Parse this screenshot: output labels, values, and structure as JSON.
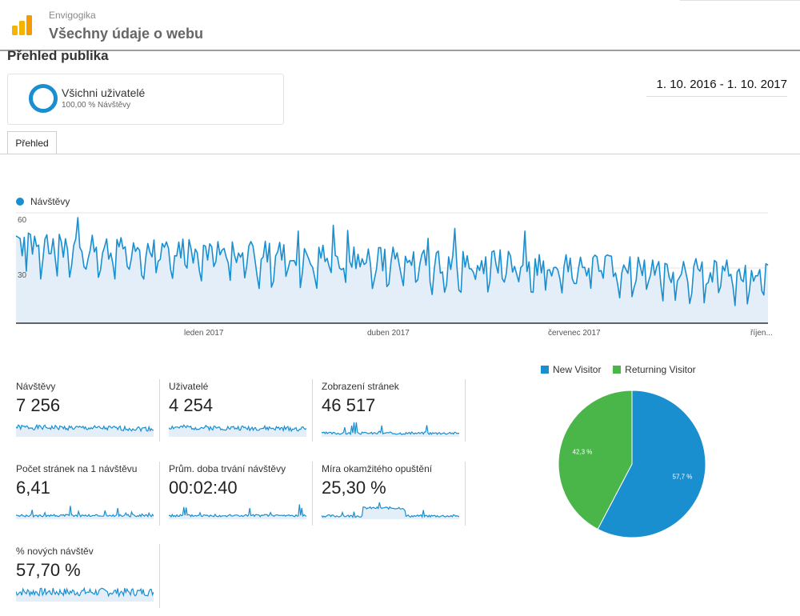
{
  "header": {
    "account": "Envigogika",
    "view": "Všechny údaje o webu"
  },
  "page_title": "Přehled publika",
  "segment": {
    "name": "Všichni uživatelé",
    "sub": "100,00 % Návštěvy"
  },
  "date_range": "1. 10. 2016 - 1. 10. 2017",
  "tabs": [
    {
      "label": "Přehled"
    }
  ],
  "colors": {
    "primary": "#1a8fd0",
    "primary_fill": "#e3eef9",
    "new_visitor": "#1a8fd0",
    "returning_visitor": "#4ab64a"
  },
  "chart_data": [
    {
      "type": "area",
      "series": [
        {
          "name": "Návštěvy"
        }
      ],
      "y_ticks": [
        "60",
        "30"
      ],
      "ylim": [
        0,
        60
      ],
      "x_tick_labels": [
        "leden 2017",
        "duben 2017",
        "červenec 2017",
        "říjen..."
      ],
      "grid": true,
      "legend": "top-left"
    },
    {
      "type": "pie",
      "categories": [
        "New Visitor",
        "Returning Visitor"
      ],
      "values": [
        57.7,
        42.3
      ],
      "value_labels": [
        "57,7 %",
        "42,3 %"
      ],
      "legend": "top"
    }
  ],
  "metrics": [
    {
      "label": "Návštěvy",
      "value": "7 256"
    },
    {
      "label": "Uživatelé",
      "value": "4 254"
    },
    {
      "label": "Zobrazení stránek",
      "value": "46 517"
    },
    {
      "label": "Počet stránek na 1 návštěvu",
      "value": "6,41"
    },
    {
      "label": "Prům. doba trvání návštěvy",
      "value": "00:02:40"
    },
    {
      "label": "Míra okamžitého opuštění",
      "value": "25,30 %"
    },
    {
      "label": "% nových návštěv",
      "value": "57,70 %"
    }
  ]
}
